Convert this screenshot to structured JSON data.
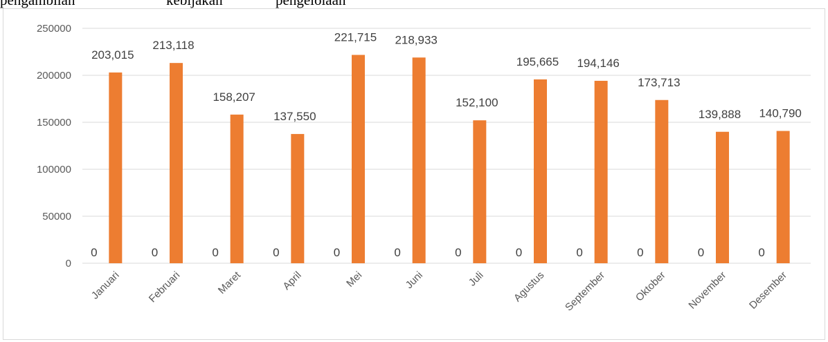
{
  "caption": {
    "words": [
      "pengambilan",
      "kebijakan",
      "pengelolaan"
    ]
  },
  "chart_data": {
    "type": "bar",
    "categories": [
      "Januari",
      "Februari",
      "Maret",
      "April",
      "Mei",
      "Juni",
      "Juli",
      "Agustus",
      "September",
      "Oktober",
      "November",
      "Desember"
    ],
    "series": [
      {
        "values": [
          0,
          0,
          0,
          0,
          0,
          0,
          0,
          0,
          0,
          0,
          0,
          0
        ],
        "labels": [
          "0",
          "0",
          "0",
          "0",
          "0",
          "0",
          "0",
          "0",
          "0",
          "0",
          "0",
          "0"
        ]
      },
      {
        "values": [
          203015,
          213118,
          158207,
          137550,
          221715,
          218933,
          152100,
          195665,
          194146,
          173713,
          139888,
          140790
        ],
        "labels": [
          "203,015",
          "213,118",
          "158,207",
          "137,550",
          "221,715",
          "218,933",
          "152,100",
          "195,665",
          "194,146",
          "173,713",
          "139,888",
          "140,790"
        ],
        "color": "#ED7D31"
      }
    ],
    "yticks": [
      "0",
      "50000",
      "100000",
      "150000",
      "200000",
      "250000"
    ],
    "ylim": [
      0,
      250000
    ],
    "grid": true,
    "legend": "none",
    "title": "",
    "xlabel": "",
    "ylabel": ""
  }
}
